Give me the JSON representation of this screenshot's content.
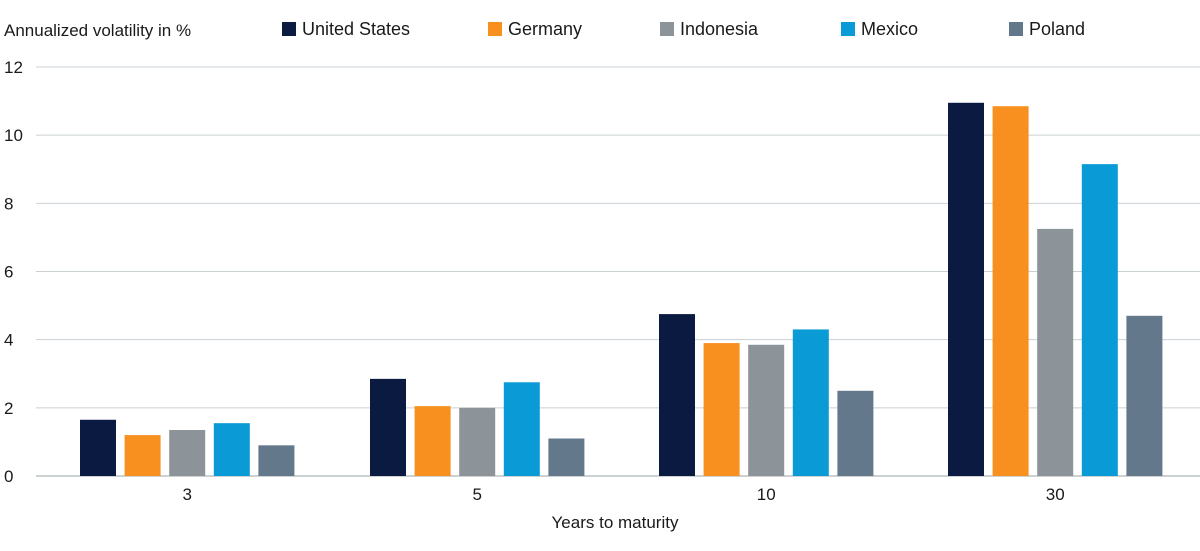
{
  "chart_data": {
    "type": "bar",
    "ylabel": "Annualized volatility in %",
    "xlabel": "Years to maturity",
    "categories": [
      "3",
      "5",
      "10",
      "30"
    ],
    "ylim": [
      0,
      12
    ],
    "yticks": [
      "0",
      "2",
      "4",
      "6",
      "8",
      "10",
      "12"
    ],
    "grid": true,
    "legend_position": "top",
    "series": [
      {
        "name": "United States",
        "color": "#0a1a40",
        "values": [
          1.65,
          2.85,
          4.75,
          10.95
        ]
      },
      {
        "name": "Germany",
        "color": "#f7901e",
        "values": [
          1.2,
          2.05,
          3.9,
          10.85
        ]
      },
      {
        "name": "Indonesia",
        "color": "#8c9499",
        "values": [
          1.35,
          2.0,
          3.85,
          7.25
        ]
      },
      {
        "name": "Mexico",
        "color": "#0a9ad6",
        "values": [
          1.55,
          2.75,
          4.3,
          9.15
        ]
      },
      {
        "name": "Poland",
        "color": "#64788c",
        "values": [
          0.9,
          1.1,
          2.5,
          4.7
        ]
      }
    ]
  }
}
